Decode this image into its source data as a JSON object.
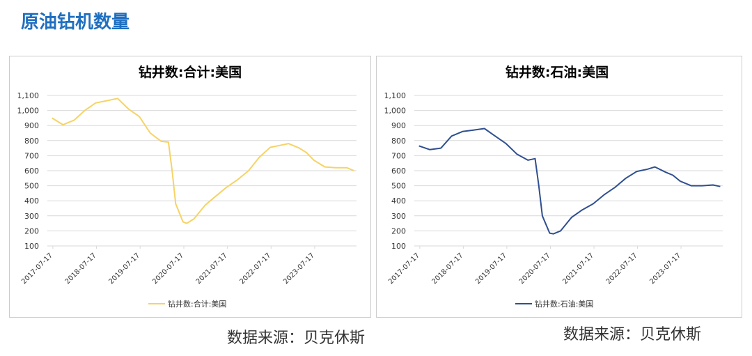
{
  "title": "原油钻机数量",
  "chart_data": [
    {
      "type": "line",
      "title": "钻井数:合计:美国",
      "x": [
        "2017-07-10",
        "2017-10-10",
        "2018-01-10",
        "2018-04-10",
        "2018-07-10",
        "2018-10-10",
        "2019-01-10",
        "2019-04-10",
        "2019-07-10",
        "2019-10-10",
        "2020-01-10",
        "2020-03-10",
        "2020-04-10",
        "2020-05-10",
        "2020-07-10",
        "2020-08-10",
        "2020-10-10",
        "2021-01-10",
        "2021-04-10",
        "2021-07-10",
        "2021-10-10",
        "2022-01-10",
        "2022-04-10",
        "2022-07-10",
        "2022-10-10",
        "2022-12-10",
        "2023-03-10",
        "2023-05-10",
        "2023-07-10",
        "2023-10-10",
        "2024-01-10",
        "2024-04-10",
        "2024-06-10"
      ],
      "series": [
        {
          "name": "钻井数:合计:美国",
          "color": "#f6d365",
          "values": [
            950,
            905,
            935,
            1000,
            1050,
            1065,
            1080,
            1010,
            960,
            850,
            795,
            790,
            600,
            380,
            260,
            250,
            280,
            370,
            430,
            490,
            540,
            600,
            690,
            755,
            770,
            780,
            750,
            720,
            670,
            625,
            620,
            620,
            600
          ]
        }
      ],
      "xlim": [
        "2017-06-01",
        "2024-07-01"
      ],
      "xticks": [
        "2017-07-17",
        "2018-07-17",
        "2019-07-17",
        "2020-07-17",
        "2021-07-17",
        "2022-07-17",
        "2023-07-17"
      ],
      "ylim": [
        100,
        1100
      ],
      "yticks": [
        100,
        200,
        300,
        400,
        500,
        600,
        700,
        800,
        900,
        {
          "value": 1000,
          "label": "1,000"
        },
        {
          "value": 1100,
          "label": "1,100"
        }
      ],
      "grid": true
    },
    {
      "type": "line",
      "title": "钻井数:石油:美国",
      "x": [
        "2017-07-10",
        "2017-10-10",
        "2018-01-10",
        "2018-04-10",
        "2018-07-10",
        "2018-10-10",
        "2019-01-10",
        "2019-04-10",
        "2019-07-10",
        "2019-10-10",
        "2020-01-10",
        "2020-03-10",
        "2020-04-10",
        "2020-05-10",
        "2020-07-10",
        "2020-08-10",
        "2020-10-10",
        "2021-01-10",
        "2021-04-10",
        "2021-07-10",
        "2021-10-10",
        "2022-01-10",
        "2022-04-10",
        "2022-07-10",
        "2022-10-10",
        "2022-12-10",
        "2023-03-10",
        "2023-05-10",
        "2023-07-10",
        "2023-10-10",
        "2024-01-10",
        "2024-04-10",
        "2024-06-10"
      ],
      "series": [
        {
          "name": "钻井数:石油:美国",
          "color": "#2f4f8f",
          "values": [
            765,
            740,
            750,
            830,
            860,
            870,
            880,
            830,
            780,
            710,
            670,
            680,
            500,
            300,
            185,
            180,
            200,
            290,
            340,
            380,
            440,
            490,
            550,
            595,
            610,
            625,
            590,
            570,
            530,
            500,
            500,
            505,
            495
          ]
        }
      ],
      "xlim": [
        "2017-06-01",
        "2024-07-01"
      ],
      "xticks": [
        "2017-07-17",
        "2018-07-17",
        "2019-07-17",
        "2020-07-17",
        "2021-07-17",
        "2022-07-17",
        "2023-07-17"
      ],
      "ylim": [
        100,
        1100
      ],
      "yticks": [
        100,
        200,
        300,
        400,
        500,
        600,
        700,
        800,
        900,
        {
          "value": 1000,
          "label": "1,000"
        },
        {
          "value": 1100,
          "label": "1,100"
        }
      ],
      "grid": true
    }
  ],
  "sources": [
    "数据来源：贝克休斯",
    "数据来源：贝克休斯"
  ]
}
